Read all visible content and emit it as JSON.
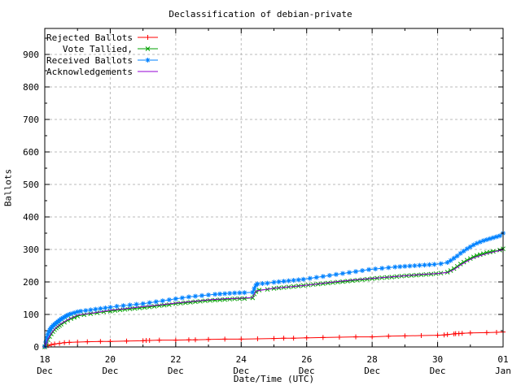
{
  "chart_data": {
    "type": "line",
    "title": "Declassification of debian-private",
    "xlabel": "Date/Time (UTC)",
    "ylabel": "Ballots",
    "x_axis": {
      "unit": "days since 18 Dec 00:00 UTC",
      "min": 0,
      "max": 14,
      "minor_tick_interval": 1,
      "major_ticks": [
        {
          "x": 0,
          "label1": "18",
          "label2": "Dec"
        },
        {
          "x": 2,
          "label1": "20",
          "label2": "Dec"
        },
        {
          "x": 4,
          "label1": "22",
          "label2": "Dec"
        },
        {
          "x": 6,
          "label1": "24",
          "label2": "Dec"
        },
        {
          "x": 8,
          "label1": "26",
          "label2": "Dec"
        },
        {
          "x": 10,
          "label1": "28",
          "label2": "Dec"
        },
        {
          "x": 12,
          "label1": "30",
          "label2": "Dec"
        },
        {
          "x": 14,
          "label1": "01",
          "label2": "Jan"
        }
      ]
    },
    "y_axis": {
      "min": 0,
      "max": 980,
      "major_tick_interval": 100,
      "minor_tick_interval": 50,
      "labeled_max": 900
    },
    "grid": {
      "shown": true,
      "style": "dashed",
      "color": "#bbbbbb"
    },
    "legend_position": "top-left-inside",
    "series": [
      {
        "name": "Rejected Ballots",
        "color": "#ff0000",
        "marker": "plus",
        "marker_spacing_px": null,
        "points": [
          [
            0,
            0
          ],
          [
            0.1,
            4
          ],
          [
            0.2,
            7
          ],
          [
            0.3,
            9
          ],
          [
            0.45,
            11
          ],
          [
            0.6,
            13
          ],
          [
            0.75,
            14
          ],
          [
            1.0,
            15
          ],
          [
            1.3,
            16
          ],
          [
            1.7,
            17
          ],
          [
            2.0,
            17
          ],
          [
            2.5,
            18
          ],
          [
            3.0,
            19
          ],
          [
            3.1,
            20
          ],
          [
            3.2,
            20
          ],
          [
            3.5,
            21
          ],
          [
            4.0,
            21
          ],
          [
            4.4,
            22
          ],
          [
            4.6,
            22
          ],
          [
            5.0,
            23
          ],
          [
            5.5,
            24
          ],
          [
            6.0,
            24
          ],
          [
            6.5,
            25
          ],
          [
            7.0,
            26
          ],
          [
            7.3,
            27
          ],
          [
            7.6,
            27
          ],
          [
            8.0,
            28
          ],
          [
            8.5,
            29
          ],
          [
            9.0,
            30
          ],
          [
            9.5,
            31
          ],
          [
            10.0,
            31
          ],
          [
            10.5,
            33
          ],
          [
            11.0,
            34
          ],
          [
            11.5,
            35
          ],
          [
            12.0,
            36
          ],
          [
            12.2,
            37
          ],
          [
            12.3,
            38
          ],
          [
            12.5,
            40
          ],
          [
            12.55,
            41
          ],
          [
            12.65,
            41
          ],
          [
            12.75,
            42
          ],
          [
            13.0,
            43
          ],
          [
            13.5,
            44
          ],
          [
            13.8,
            45
          ],
          [
            14.0,
            46
          ]
        ]
      },
      {
        "name": "Vote Tallied,",
        "color": "#00a000",
        "marker": "cross",
        "marker_spacing_px": 6,
        "points": [
          [
            0,
            0
          ],
          [
            0.05,
            10
          ],
          [
            0.1,
            22
          ],
          [
            0.15,
            32
          ],
          [
            0.2,
            40
          ],
          [
            0.25,
            47
          ],
          [
            0.3,
            53
          ],
          [
            0.35,
            58
          ],
          [
            0.4,
            62
          ],
          [
            0.45,
            66
          ],
          [
            0.5,
            70
          ],
          [
            0.6,
            76
          ],
          [
            0.7,
            82
          ],
          [
            0.8,
            87
          ],
          [
            0.9,
            91
          ],
          [
            1.0,
            95
          ],
          [
            1.2,
            99
          ],
          [
            1.4,
            102
          ],
          [
            1.6,
            105
          ],
          [
            1.8,
            108
          ],
          [
            2.0,
            110
          ],
          [
            2.3,
            114
          ],
          [
            2.6,
            117
          ],
          [
            2.9,
            120
          ],
          [
            3.2,
            123
          ],
          [
            3.5,
            127
          ],
          [
            3.8,
            130
          ],
          [
            4.0,
            133
          ],
          [
            4.3,
            136
          ],
          [
            4.6,
            139
          ],
          [
            4.9,
            142
          ],
          [
            5.2,
            144
          ],
          [
            5.5,
            146
          ],
          [
            5.8,
            148
          ],
          [
            6.1,
            149
          ],
          [
            6.35,
            151
          ],
          [
            6.4,
            163
          ],
          [
            6.45,
            170
          ],
          [
            6.55,
            175
          ],
          [
            6.8,
            177
          ],
          [
            7.0,
            180
          ],
          [
            7.3,
            183
          ],
          [
            7.6,
            186
          ],
          [
            7.9,
            189
          ],
          [
            8.2,
            192
          ],
          [
            8.5,
            195
          ],
          [
            8.8,
            198
          ],
          [
            9.1,
            201
          ],
          [
            9.4,
            204
          ],
          [
            9.7,
            207
          ],
          [
            10.0,
            210
          ],
          [
            10.3,
            213
          ],
          [
            10.6,
            215
          ],
          [
            10.9,
            218
          ],
          [
            11.2,
            220
          ],
          [
            11.5,
            222
          ],
          [
            11.8,
            224
          ],
          [
            12.1,
            227
          ],
          [
            12.3,
            230
          ],
          [
            12.4,
            235
          ],
          [
            12.5,
            241
          ],
          [
            12.6,
            248
          ],
          [
            12.7,
            255
          ],
          [
            12.8,
            261
          ],
          [
            12.9,
            267
          ],
          [
            13.0,
            272
          ],
          [
            13.1,
            277
          ],
          [
            13.2,
            281
          ],
          [
            13.3,
            284
          ],
          [
            13.4,
            287
          ],
          [
            13.5,
            290
          ],
          [
            13.6,
            292
          ],
          [
            13.7,
            294
          ],
          [
            13.9,
            298
          ],
          [
            14.0,
            302
          ]
        ]
      },
      {
        "name": "Received Ballots",
        "color": "#0082ff",
        "marker": "star",
        "marker_spacing_px": 6,
        "points": [
          [
            0,
            2
          ],
          [
            0.03,
            15
          ],
          [
            0.06,
            28
          ],
          [
            0.09,
            38
          ],
          [
            0.12,
            46
          ],
          [
            0.15,
            52
          ],
          [
            0.18,
            57
          ],
          [
            0.22,
            62
          ],
          [
            0.26,
            66
          ],
          [
            0.3,
            70
          ],
          [
            0.35,
            74
          ],
          [
            0.4,
            78
          ],
          [
            0.45,
            82
          ],
          [
            0.5,
            86
          ],
          [
            0.55,
            89
          ],
          [
            0.6,
            92
          ],
          [
            0.65,
            95
          ],
          [
            0.7,
            98
          ],
          [
            0.75,
            100
          ],
          [
            0.8,
            102
          ],
          [
            0.9,
            105
          ],
          [
            1.0,
            108
          ],
          [
            1.1,
            110
          ],
          [
            1.25,
            112
          ],
          [
            1.4,
            114
          ],
          [
            1.55,
            116
          ],
          [
            1.7,
            118
          ],
          [
            1.85,
            120
          ],
          [
            2.0,
            122
          ],
          [
            2.2,
            125
          ],
          [
            2.4,
            127
          ],
          [
            2.6,
            129
          ],
          [
            2.8,
            131
          ],
          [
            3.0,
            133
          ],
          [
            3.2,
            136
          ],
          [
            3.4,
            139
          ],
          [
            3.6,
            142
          ],
          [
            3.8,
            145
          ],
          [
            4.0,
            148
          ],
          [
            4.2,
            151
          ],
          [
            4.4,
            154
          ],
          [
            4.6,
            156
          ],
          [
            4.8,
            158
          ],
          [
            5.0,
            160
          ],
          [
            5.2,
            162
          ],
          [
            5.5,
            164
          ],
          [
            5.8,
            166
          ],
          [
            6.1,
            167
          ],
          [
            6.35,
            168
          ],
          [
            6.4,
            180
          ],
          [
            6.45,
            190
          ],
          [
            6.5,
            194
          ],
          [
            6.8,
            196
          ],
          [
            7.0,
            199
          ],
          [
            7.3,
            202
          ],
          [
            7.6,
            205
          ],
          [
            7.9,
            208
          ],
          [
            8.1,
            211
          ],
          [
            8.3,
            214
          ],
          [
            8.5,
            217
          ],
          [
            8.7,
            220
          ],
          [
            8.9,
            223
          ],
          [
            9.1,
            226
          ],
          [
            9.3,
            229
          ],
          [
            9.5,
            232
          ],
          [
            9.7,
            235
          ],
          [
            9.9,
            238
          ],
          [
            10.1,
            240
          ],
          [
            10.3,
            242
          ],
          [
            10.5,
            244
          ],
          [
            10.7,
            246
          ],
          [
            11.0,
            248
          ],
          [
            11.3,
            250
          ],
          [
            11.6,
            252
          ],
          [
            11.9,
            254
          ],
          [
            12.1,
            256
          ],
          [
            12.3,
            260
          ],
          [
            12.4,
            266
          ],
          [
            12.5,
            273
          ],
          [
            12.6,
            280
          ],
          [
            12.7,
            288
          ],
          [
            12.8,
            295
          ],
          [
            12.9,
            302
          ],
          [
            13.0,
            308
          ],
          [
            13.1,
            314
          ],
          [
            13.2,
            319
          ],
          [
            13.3,
            323
          ],
          [
            13.4,
            327
          ],
          [
            13.5,
            330
          ],
          [
            13.6,
            333
          ],
          [
            13.7,
            336
          ],
          [
            13.8,
            339
          ],
          [
            13.9,
            342
          ],
          [
            14.0,
            350
          ]
        ]
      },
      {
        "name": "Acknowledgements",
        "color": "#9400d3",
        "marker": "none",
        "marker_spacing_px": null,
        "points": [
          [
            0,
            0
          ],
          [
            0.1,
            25
          ],
          [
            0.2,
            42
          ],
          [
            0.3,
            55
          ],
          [
            0.4,
            64
          ],
          [
            0.5,
            72
          ],
          [
            0.7,
            84
          ],
          [
            0.9,
            93
          ],
          [
            1.0,
            98
          ],
          [
            1.5,
            105
          ],
          [
            2.0,
            113
          ],
          [
            2.5,
            118
          ],
          [
            3.0,
            124
          ],
          [
            3.5,
            129
          ],
          [
            4.0,
            135
          ],
          [
            4.5,
            140
          ],
          [
            5.0,
            145
          ],
          [
            5.5,
            148
          ],
          [
            6.0,
            150
          ],
          [
            6.35,
            152
          ],
          [
            6.45,
            172
          ],
          [
            7.0,
            181
          ],
          [
            7.5,
            185
          ],
          [
            8.0,
            190
          ],
          [
            8.5,
            196
          ],
          [
            9.0,
            202
          ],
          [
            9.5,
            207
          ],
          [
            10.0,
            211
          ],
          [
            10.5,
            215
          ],
          [
            11.0,
            219
          ],
          [
            11.5,
            223
          ],
          [
            12.0,
            226
          ],
          [
            12.3,
            229
          ],
          [
            12.5,
            238
          ],
          [
            12.7,
            252
          ],
          [
            12.9,
            264
          ],
          [
            13.1,
            274
          ],
          [
            13.3,
            281
          ],
          [
            13.5,
            287
          ],
          [
            13.7,
            292
          ],
          [
            14.0,
            299
          ]
        ]
      }
    ]
  }
}
